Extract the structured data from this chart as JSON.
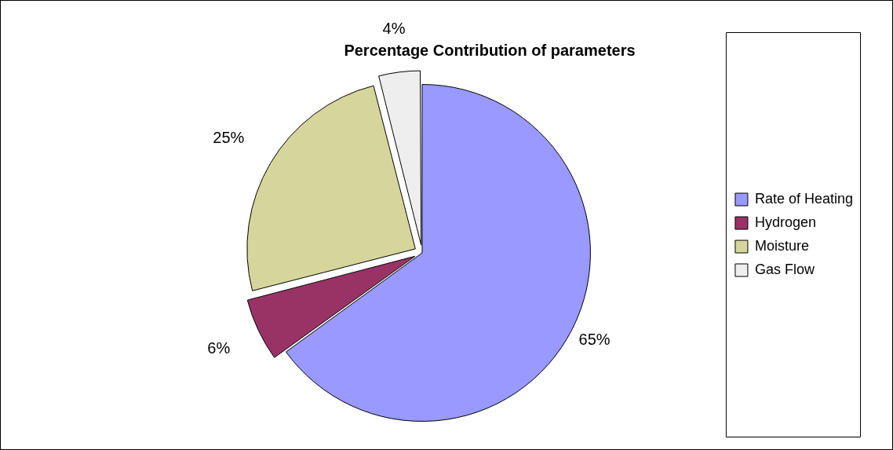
{
  "chart_data": {
    "type": "pie",
    "title": "Percentage Contribution of parameters",
    "categories": [
      "Rate of Heating",
      "Hydrogen",
      "Moisture",
      "Gas Flow"
    ],
    "values": [
      65,
      6,
      25,
      4
    ],
    "value_labels": [
      "65%",
      "6%",
      "25%",
      "4%"
    ],
    "colors": [
      "#9999ff",
      "#993366",
      "#d6d69c",
      "#eeeeee"
    ],
    "legend": "right"
  }
}
